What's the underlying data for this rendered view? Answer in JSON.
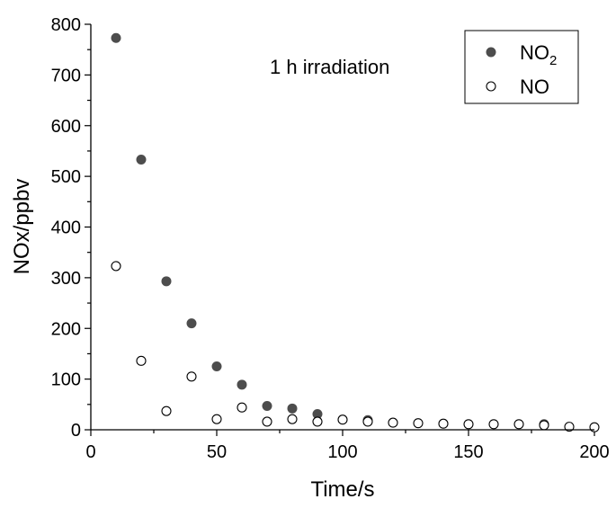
{
  "chart_data": {
    "type": "scatter",
    "title": "",
    "annotation": "1 h irradiation",
    "xlabel": "Time/s",
    "ylabel": "NOx/ppbv",
    "xlim": [
      0,
      200
    ],
    "ylim": [
      0,
      800
    ],
    "xticks": [
      0,
      50,
      100,
      150,
      200
    ],
    "yticks": [
      0,
      100,
      200,
      300,
      400,
      500,
      600,
      700,
      800
    ],
    "grid": false,
    "legend_position": "top-right",
    "series": [
      {
        "name": "NO2",
        "label_main": "NO",
        "label_sub": "2",
        "marker": "filled-circle",
        "color": "#4d4d4d",
        "x": [
          10,
          20,
          30,
          40,
          50,
          60,
          70,
          80,
          90,
          110,
          180
        ],
        "y": [
          773,
          533,
          293,
          210,
          125,
          89,
          47,
          42,
          31,
          19,
          11
        ]
      },
      {
        "name": "NO",
        "label_main": "NO",
        "label_sub": "",
        "marker": "open-circle",
        "color": "#000000",
        "x": [
          10,
          20,
          30,
          40,
          50,
          60,
          70,
          80,
          90,
          100,
          110,
          120,
          130,
          140,
          150,
          160,
          170,
          180,
          190,
          200
        ],
        "y": [
          323,
          136,
          37,
          105,
          21,
          44,
          16,
          21,
          16,
          20,
          16,
          14,
          13,
          12,
          11,
          11,
          11,
          9,
          6,
          5
        ]
      }
    ]
  }
}
